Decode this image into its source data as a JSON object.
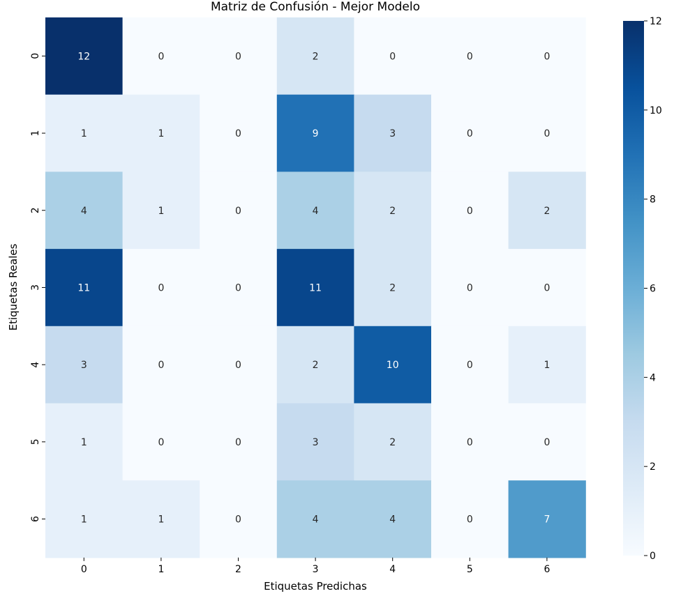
{
  "chart_data": {
    "type": "heatmap",
    "title": "Matriz de Confusión - Mejor Modelo",
    "xlabel": "Etiquetas Predichas",
    "ylabel": "Etiquetas Reales",
    "x_categories": [
      "0",
      "1",
      "2",
      "3",
      "4",
      "5",
      "6"
    ],
    "y_categories": [
      "0",
      "1",
      "2",
      "3",
      "4",
      "5",
      "6"
    ],
    "values": [
      [
        12,
        0,
        0,
        2,
        0,
        0,
        0
      ],
      [
        1,
        1,
        0,
        9,
        3,
        0,
        0
      ],
      [
        4,
        1,
        0,
        4,
        2,
        0,
        2
      ],
      [
        11,
        0,
        0,
        11,
        2,
        0,
        0
      ],
      [
        3,
        0,
        0,
        2,
        10,
        0,
        1
      ],
      [
        1,
        0,
        0,
        3,
        2,
        0,
        0
      ],
      [
        1,
        1,
        0,
        4,
        4,
        0,
        7
      ]
    ],
    "colormap": "Blues",
    "vmin": 0,
    "vmax": 12,
    "colorbar_ticks": [
      0,
      2,
      4,
      6,
      8,
      10,
      12
    ],
    "annotated": true
  }
}
